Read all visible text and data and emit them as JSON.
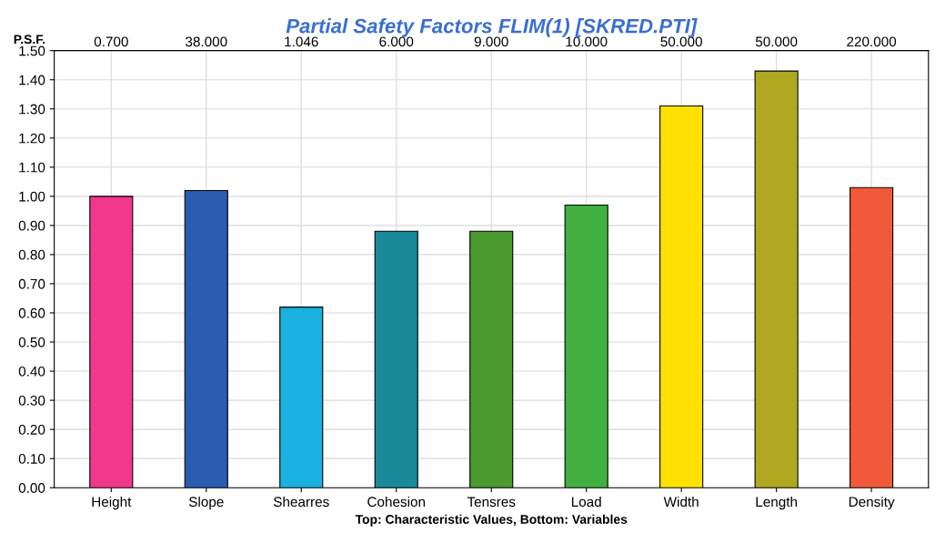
{
  "chart_data": {
    "type": "bar",
    "title": "Partial Safety Factors FLIM(1) [SKRED.PTI]",
    "ylabel": "P.S.F.",
    "xlabel": "Top: Characteristic Values, Bottom: Variables",
    "categories": [
      "Height",
      "Slope",
      "Shearres",
      "Cohesion",
      "Tensres",
      "Load",
      "Width",
      "Length",
      "Density"
    ],
    "values": [
      1.0,
      1.02,
      0.62,
      0.88,
      0.88,
      0.97,
      1.31,
      1.43,
      1.03
    ],
    "colors": [
      "#f0388c",
      "#2a5cb0",
      "#1ab0e0",
      "#1a8a9a",
      "#4a9a30",
      "#40b040",
      "#ffe000",
      "#b0a820",
      "#f05a3a"
    ],
    "ylim": [
      0,
      1.5
    ],
    "yticks": [
      {
        "value": 0,
        "label": "0.00"
      },
      {
        "value": 0.1,
        "label": "0.10"
      },
      {
        "value": 0.2,
        "label": "0.20"
      },
      {
        "value": 0.3,
        "label": "0.30"
      },
      {
        "value": 0.4,
        "label": "0.40"
      },
      {
        "value": 0.5,
        "label": "0.50"
      },
      {
        "value": 0.6,
        "label": "0.60"
      },
      {
        "value": 0.7,
        "label": "0.70"
      },
      {
        "value": 0.8,
        "label": "0.80"
      },
      {
        "value": 0.9,
        "label": "0.90"
      },
      {
        "value": 1.0,
        "label": "1.00"
      },
      {
        "value": 1.1,
        "label": "1.10"
      },
      {
        "value": 1.2,
        "label": "1.20"
      },
      {
        "value": 1.3,
        "label": "1.30"
      },
      {
        "value": 1.4,
        "label": "1.40"
      },
      {
        "value": 1.5,
        "label": "1.50"
      }
    ],
    "grid": true,
    "annotations": [
      "0.700",
      "38.000",
      "1.046",
      "6.000",
      "9.000",
      "10.000",
      "50.000",
      "50.000",
      "220.000"
    ]
  }
}
